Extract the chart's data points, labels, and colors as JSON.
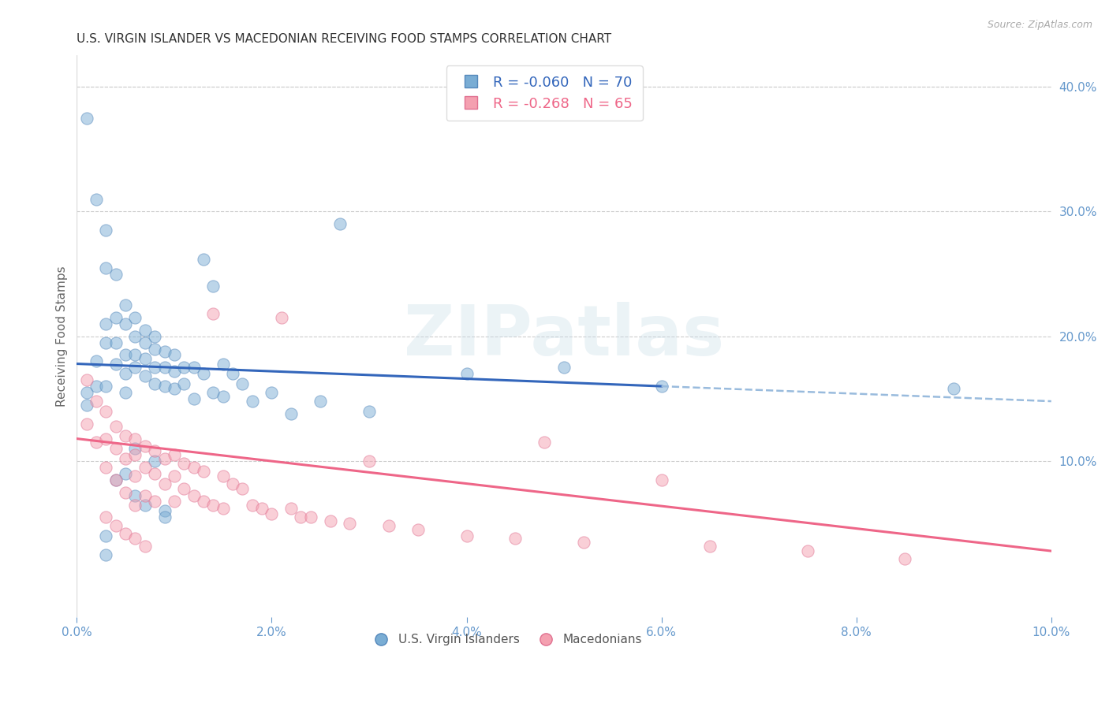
{
  "title": "U.S. VIRGIN ISLANDER VS MACEDONIAN RECEIVING FOOD STAMPS CORRELATION CHART",
  "source": "Source: ZipAtlas.com",
  "ylabel": "Receiving Food Stamps",
  "xmin": 0.0,
  "xmax": 0.1,
  "ymin": -0.025,
  "ymax": 0.425,
  "blue_R": -0.06,
  "blue_N": 70,
  "pink_R": -0.268,
  "pink_N": 65,
  "blue_scatter_color": "#7aadd4",
  "pink_scatter_color": "#f4a0b0",
  "blue_edge_color": "#5588bb",
  "pink_edge_color": "#e07090",
  "blue_line_color": "#3366bb",
  "pink_line_color": "#ee6688",
  "blue_dashed_color": "#99bbdd",
  "grid_color": "#cccccc",
  "axis_tick_color": "#6699cc",
  "legend_label1": "U.S. Virgin Islanders",
  "legend_label2": "Macedonians",
  "watermark_text": "ZIPatlas",
  "blue_line_x0": 0.0,
  "blue_line_y0": 0.178,
  "blue_line_x1": 0.1,
  "blue_line_y1": 0.148,
  "pink_line_x0": 0.0,
  "pink_line_y0": 0.118,
  "pink_line_x1": 0.1,
  "pink_line_y1": 0.028,
  "blue_scatter_x": [
    0.001,
    0.001,
    0.001,
    0.002,
    0.002,
    0.002,
    0.003,
    0.003,
    0.003,
    0.003,
    0.003,
    0.004,
    0.004,
    0.004,
    0.004,
    0.005,
    0.005,
    0.005,
    0.005,
    0.006,
    0.006,
    0.006,
    0.006,
    0.007,
    0.007,
    0.007,
    0.007,
    0.008,
    0.008,
    0.008,
    0.008,
    0.009,
    0.009,
    0.009,
    0.01,
    0.01,
    0.01,
    0.011,
    0.011,
    0.012,
    0.012,
    0.013,
    0.013,
    0.014,
    0.014,
    0.015,
    0.015,
    0.016,
    0.017,
    0.018,
    0.02,
    0.022,
    0.025,
    0.027,
    0.03,
    0.04,
    0.05,
    0.06,
    0.09,
    0.003,
    0.003,
    0.004,
    0.005,
    0.005,
    0.006,
    0.006,
    0.007,
    0.008,
    0.009,
    0.009
  ],
  "blue_scatter_y": [
    0.375,
    0.155,
    0.145,
    0.31,
    0.18,
    0.16,
    0.285,
    0.255,
    0.21,
    0.195,
    0.16,
    0.25,
    0.215,
    0.195,
    0.178,
    0.225,
    0.21,
    0.185,
    0.17,
    0.215,
    0.2,
    0.185,
    0.175,
    0.205,
    0.195,
    0.182,
    0.168,
    0.2,
    0.19,
    0.175,
    0.162,
    0.188,
    0.175,
    0.16,
    0.185,
    0.172,
    0.158,
    0.175,
    0.162,
    0.175,
    0.15,
    0.262,
    0.17,
    0.24,
    0.155,
    0.178,
    0.152,
    0.17,
    0.162,
    0.148,
    0.155,
    0.138,
    0.148,
    0.29,
    0.14,
    0.17,
    0.175,
    0.16,
    0.158,
    0.04,
    0.025,
    0.085,
    0.155,
    0.09,
    0.11,
    0.072,
    0.065,
    0.1,
    0.06,
    0.055
  ],
  "pink_scatter_x": [
    0.001,
    0.001,
    0.002,
    0.002,
    0.003,
    0.003,
    0.003,
    0.004,
    0.004,
    0.004,
    0.005,
    0.005,
    0.005,
    0.006,
    0.006,
    0.006,
    0.006,
    0.007,
    0.007,
    0.007,
    0.008,
    0.008,
    0.008,
    0.009,
    0.009,
    0.01,
    0.01,
    0.01,
    0.011,
    0.011,
    0.012,
    0.012,
    0.013,
    0.013,
    0.014,
    0.014,
    0.015,
    0.015,
    0.016,
    0.017,
    0.018,
    0.019,
    0.02,
    0.021,
    0.022,
    0.023,
    0.024,
    0.026,
    0.028,
    0.03,
    0.032,
    0.035,
    0.04,
    0.045,
    0.048,
    0.052,
    0.06,
    0.065,
    0.075,
    0.085,
    0.003,
    0.004,
    0.005,
    0.006,
    0.007
  ],
  "pink_scatter_y": [
    0.165,
    0.13,
    0.148,
    0.115,
    0.14,
    0.118,
    0.095,
    0.128,
    0.11,
    0.085,
    0.12,
    0.102,
    0.075,
    0.118,
    0.105,
    0.088,
    0.065,
    0.112,
    0.095,
    0.072,
    0.108,
    0.09,
    0.068,
    0.102,
    0.082,
    0.105,
    0.088,
    0.068,
    0.098,
    0.078,
    0.095,
    0.072,
    0.092,
    0.068,
    0.218,
    0.065,
    0.088,
    0.062,
    0.082,
    0.078,
    0.065,
    0.062,
    0.058,
    0.215,
    0.062,
    0.055,
    0.055,
    0.052,
    0.05,
    0.1,
    0.048,
    0.045,
    0.04,
    0.038,
    0.115,
    0.035,
    0.085,
    0.032,
    0.028,
    0.022,
    0.055,
    0.048,
    0.042,
    0.038,
    0.032
  ]
}
